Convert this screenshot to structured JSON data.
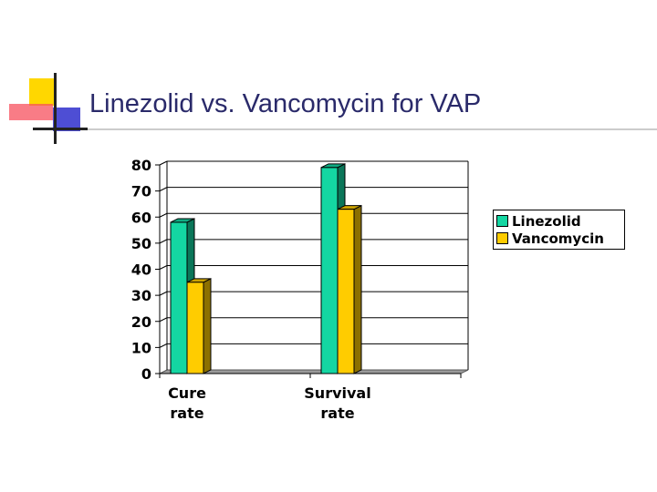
{
  "slide": {
    "title": "Linezolid vs. Vancomycin for VAP"
  },
  "colors": {
    "title": "#2a2a6a",
    "accent_yellow": "#ffd700",
    "accent_red": "#f7505e",
    "accent_blue": "#2f2fcc",
    "linezolid": "#14d6a2",
    "vancomycin": "#ffcc00"
  },
  "chart_data": {
    "type": "bar",
    "title": "",
    "xlabel": "",
    "ylabel": "",
    "categories": [
      {
        "line1": "Cure",
        "line2": "rate"
      },
      {
        "line1": "Survival",
        "line2": "rate"
      }
    ],
    "series": [
      {
        "name": "Linezolid",
        "values": [
          58,
          79
        ]
      },
      {
        "name": "Vancomycin",
        "values": [
          35,
          63
        ]
      }
    ],
    "ylim": [
      0,
      80
    ],
    "yticks": [
      "0",
      "10",
      "20",
      "30",
      "40",
      "50",
      "60",
      "70",
      "80"
    ],
    "grid": true,
    "legend": "right"
  }
}
